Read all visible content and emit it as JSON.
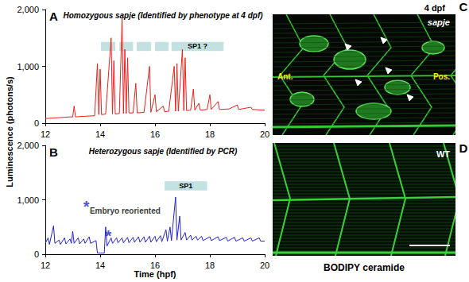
{
  "chart_data": [
    {
      "type": "line",
      "label": "A",
      "title": "Homozygous sapje (Identified by phenotype at 4 dpf)",
      "ylabel": "Luminescence (photons/s)",
      "color": "#e8201c",
      "xlim": [
        12,
        20
      ],
      "xticks": [
        12,
        14,
        16,
        18,
        20
      ],
      "ylim": [
        0,
        2000
      ],
      "yticks": [
        0,
        1000,
        2000
      ],
      "x": [
        12.0,
        12.3,
        12.6,
        12.9,
        13.0,
        13.05,
        13.1,
        13.4,
        13.8,
        13.9,
        13.95,
        14.0,
        14.05,
        14.2,
        14.4,
        14.45,
        14.5,
        14.55,
        14.7,
        14.8,
        14.85,
        14.9,
        14.95,
        15.0,
        15.05,
        15.2,
        15.3,
        15.35,
        15.6,
        15.8,
        15.85,
        16.0,
        16.05,
        16.3,
        16.35,
        16.5,
        16.7,
        16.75,
        16.8,
        16.85,
        17.0,
        17.05,
        17.1,
        17.15,
        17.3,
        17.4,
        17.45,
        17.6,
        17.65,
        17.9,
        18.0,
        18.05,
        18.3,
        18.35,
        18.7,
        19.0,
        19.05,
        19.5,
        19.55,
        20.0
      ],
      "values": [
        80,
        90,
        100,
        110,
        110,
        300,
        110,
        120,
        130,
        1050,
        150,
        950,
        150,
        160,
        1500,
        160,
        1100,
        160,
        170,
        1850,
        170,
        1300,
        170,
        1150,
        180,
        180,
        700,
        180,
        190,
        1000,
        190,
        500,
        200,
        300,
        200,
        210,
        1000,
        210,
        1050,
        210,
        1300,
        220,
        1150,
        220,
        230,
        600,
        230,
        350,
        230,
        240,
        500,
        240,
        380,
        240,
        250,
        320,
        240,
        280,
        240,
        230
      ],
      "shaded_ranges": [
        {
          "x": [
            14.03,
            14.55
          ],
          "y": [
            1270,
            1430
          ]
        },
        {
          "x": [
            14.7,
            15.2
          ],
          "y": [
            1270,
            1430
          ]
        },
        {
          "x": [
            15.33,
            15.86
          ],
          "y": [
            1270,
            1430
          ]
        },
        {
          "x": [
            16.0,
            16.5
          ],
          "y": [
            1270,
            1430
          ]
        },
        {
          "x": [
            16.6,
            18.5
          ],
          "y": [
            1270,
            1430
          ],
          "label": "SP1 ?"
        }
      ]
    },
    {
      "type": "line",
      "label": "B",
      "title": "Heterozygous sapje (Identified by PCR)",
      "xlabel": "Time (hpf)",
      "color": "#2323c8",
      "xlim": [
        12,
        20
      ],
      "xticks": [
        12,
        14,
        16,
        18,
        20
      ],
      "ylim": [
        0,
        2000
      ],
      "yticks": [
        0,
        1000,
        2000
      ],
      "x": [
        12.0,
        12.1,
        12.15,
        12.3,
        12.35,
        12.5,
        12.55,
        12.7,
        12.75,
        12.9,
        12.95,
        13.0,
        13.05,
        13.2,
        13.25,
        13.4,
        13.45,
        13.6,
        13.65,
        13.85,
        13.9,
        14.15,
        14.2,
        14.25,
        14.4,
        14.45,
        14.6,
        14.65,
        14.8,
        14.85,
        15.0,
        15.05,
        15.2,
        15.25,
        15.4,
        15.45,
        15.6,
        15.65,
        15.8,
        15.85,
        16.0,
        16.05,
        16.2,
        16.25,
        16.4,
        16.45,
        16.55,
        16.6,
        16.75,
        16.8,
        16.9,
        16.95,
        17.1,
        17.15,
        17.3,
        17.35,
        17.5,
        17.55,
        17.7,
        17.75,
        18.0,
        18.05,
        18.3,
        18.35,
        18.6,
        18.65,
        18.9,
        18.95,
        19.2,
        19.25,
        19.5,
        19.55,
        19.8,
        19.85,
        20.0
      ],
      "values": [
        200,
        300,
        180,
        520,
        200,
        260,
        180,
        300,
        190,
        280,
        200,
        420,
        200,
        300,
        190,
        280,
        200,
        320,
        200,
        250,
        20,
        20,
        500,
        150,
        300,
        200,
        300,
        210,
        300,
        210,
        310,
        210,
        310,
        220,
        320,
        220,
        320,
        220,
        330,
        220,
        330,
        230,
        340,
        230,
        450,
        240,
        500,
        250,
        1050,
        260,
        700,
        260,
        400,
        260,
        350,
        260,
        330,
        260,
        330,
        250,
        320,
        250,
        320,
        250,
        310,
        240,
        310,
        240,
        300,
        240,
        300,
        240,
        300,
        240,
        240
      ],
      "shaded_ranges": [
        {
          "x": [
            16.35,
            17.9
          ],
          "y": [
            1170,
            1340
          ],
          "label": "SP1"
        }
      ],
      "annotations": [
        {
          "x": 13.5,
          "y": 880,
          "text": "*",
          "color": "#2323c8"
        },
        {
          "x": 13.62,
          "y": 800,
          "text": "Embryo reoriented"
        },
        {
          "x": 14.3,
          "y": 330,
          "text": "*",
          "color": "#2323c8"
        }
      ]
    }
  ],
  "panels": [
    {
      "label": "C",
      "texts": [
        "4 dpf",
        "sapje"
      ],
      "anterior": "Ant.",
      "posterior": "Pos."
    },
    {
      "label": "D",
      "texts": [
        "WT"
      ]
    }
  ],
  "caption": "BODIPY ceramide"
}
